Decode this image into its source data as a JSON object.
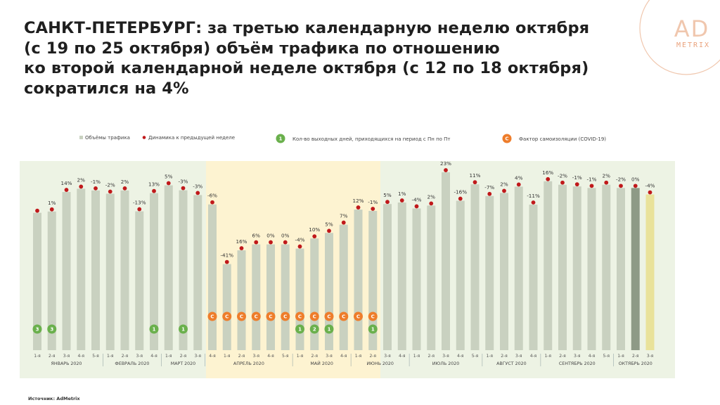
{
  "title_lines": [
    "САНКТ-ПЕТЕРБУРГ: за третью календарную неделю октября",
    "(с 19 по 25 октября) объём трафика по отношению",
    "ко второй календарной неделе октября (с 12 по 18 октября)",
    "сократился на 4%"
  ],
  "logo": {
    "text_big": "AD",
    "text_small": "METRIX"
  },
  "legend": {
    "volume": "Объёмы трафика",
    "dynamics": "Динамика к предыдущей неделе",
    "holidays_badge": "1",
    "holidays": "Кол-во выходных дней, приходящихся на период с Пн по Пт",
    "covid_badge": "С",
    "covid": "Фактор самоизоляции (COVID-19)"
  },
  "source": "Источник: AdMetrix",
  "colors": {
    "bar": "#c9d1c0",
    "bar_current": "#e9e29a",
    "bar_previous": "#8e9a86",
    "marker": "#c0191b",
    "holiday": "#6ab04c",
    "covid": "#ee7d2b",
    "panel_green": "#edf3e4",
    "panel_yellow": "#fdf3d1"
  },
  "chart_data": {
    "type": "bar",
    "months": [
      {
        "label": "ЯНВАРЬ 2020",
        "weeks": [
          "1-я",
          "2-я",
          "3-я",
          "4-я",
          "5-я"
        ]
      },
      {
        "label": "ФЕВРАЛЬ 2020",
        "weeks": [
          "1-я",
          "2-я",
          "3-я",
          "4-я"
        ]
      },
      {
        "label": "МАРТ 2020",
        "weeks": [
          "1-я",
          "2-я",
          "3-я"
        ]
      },
      {
        "label": "АПРЕЛЬ 2020",
        "weeks": [
          "4-я",
          "1-я",
          "2-я",
          "3-я",
          "4-я",
          "5-я"
        ]
      },
      {
        "label": "МАЙ 2020",
        "weeks": [
          "1-я",
          "2-я",
          "3-я",
          "4-я"
        ]
      },
      {
        "label": "ИЮНЬ 2020",
        "weeks": [
          "1-я",
          "2-я",
          "3-я",
          "4-я"
        ]
      },
      {
        "label": "ИЮЛЬ 2020",
        "weeks": [
          "1-я",
          "2-я",
          "3-я",
          "4-я",
          "5-я"
        ]
      },
      {
        "label": "АВГУСТ 2020",
        "weeks": [
          "1-я",
          "2-я",
          "3-я",
          "4-я"
        ]
      },
      {
        "label": "СЕНТЯБРЬ 2020",
        "weeks": [
          "1-я",
          "2-я",
          "3-я",
          "4-я",
          "5-я"
        ]
      },
      {
        "label": "ОКТЯБРЬ 2020",
        "weeks": [
          "1-я",
          "2-я",
          "3-я"
        ]
      }
    ],
    "dynamics_labels": [
      "",
      "1%",
      "14%",
      "2%",
      "-1%",
      "-2%",
      "2%",
      "-13%",
      "13%",
      "5%",
      "-3%",
      "-3%",
      "-6%",
      "-41%",
      "16%",
      "6%",
      "0%",
      "0%",
      "-4%",
      "10%",
      "5%",
      "7%",
      "12%",
      "-1%",
      "5%",
      "1%",
      "-4%",
      "2%",
      "23%",
      "-16%",
      "11%",
      "-7%",
      "2%",
      "4%",
      "-11%",
      "16%",
      "-2%",
      "-1%",
      "-1%",
      "2%",
      "-2%",
      "0%",
      "-4%"
    ],
    "volume_index": [
      71.8,
      72.5,
      82.7,
      84.4,
      83.5,
      81.8,
      83.5,
      72.6,
      82.1,
      86.2,
      83.6,
      81.1,
      76.2,
      45.0,
      52.2,
      55.3,
      55.3,
      55.3,
      53.1,
      58.4,
      61.3,
      65.6,
      73.5,
      72.8,
      76.4,
      77.2,
      74.1,
      75.6,
      93.0,
      78.1,
      86.7,
      80.6,
      82.2,
      85.5,
      76.1,
      88.3,
      86.5,
      85.6,
      84.8,
      86.5,
      84.8,
      84.8,
      81.4
    ],
    "holidays": [
      3,
      3,
      0,
      0,
      0,
      0,
      0,
      0,
      1,
      0,
      1,
      0,
      0,
      0,
      0,
      0,
      0,
      0,
      1,
      2,
      1,
      0,
      0,
      1,
      0,
      0,
      0,
      0,
      0,
      0,
      0,
      0,
      0,
      0,
      0,
      0,
      0,
      0,
      0,
      0,
      0,
      0,
      0
    ],
    "covid": [
      0,
      0,
      0,
      0,
      0,
      0,
      0,
      0,
      0,
      0,
      0,
      0,
      1,
      1,
      1,
      1,
      1,
      1,
      1,
      1,
      1,
      1,
      1,
      1,
      0,
      0,
      0,
      0,
      0,
      0,
      0,
      0,
      0,
      0,
      0,
      0,
      0,
      0,
      0,
      0,
      0,
      0,
      0
    ],
    "period_zones": [
      "pre-covid",
      "self-isolation",
      "post-isolation"
    ],
    "highlight": {
      "previous_week_index": 41,
      "current_week_index": 42
    },
    "legend_position": "top",
    "y_axis": "hidden"
  }
}
